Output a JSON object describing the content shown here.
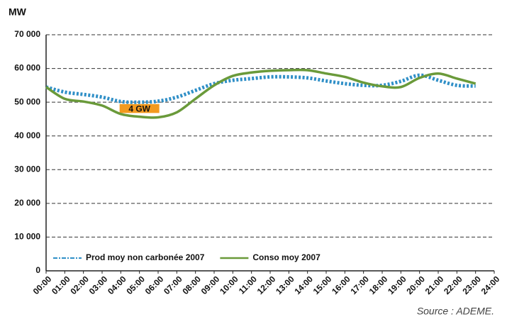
{
  "chart_data": {
    "type": "line",
    "y_label": "MW",
    "source": "Source : ADEME.",
    "annotation": "4 GW",
    "categories": [
      "00:00",
      "01:00",
      "02:00",
      "03:00",
      "04:00",
      "05:00",
      "06:00",
      "07:00",
      "08:00",
      "09:00",
      "10:00",
      "11:00",
      "12:00",
      "13:00",
      "14:00",
      "15:00",
      "16:00",
      "17:00",
      "18:00",
      "19:00",
      "20:00",
      "21:00",
      "22:00",
      "23:00",
      "24:00"
    ],
    "series": [
      {
        "name": "Prod moy non carbonée 2007",
        "color": "#2f8fc7",
        "style": "dotted",
        "values": [
          54500,
          53000,
          52300,
          51500,
          50200,
          50000,
          50300,
          51500,
          53500,
          55500,
          56500,
          57000,
          57500,
          57500,
          57200,
          56300,
          55500,
          55000,
          55000,
          56200,
          58000,
          56500,
          55000,
          54800,
          null
        ]
      },
      {
        "name": "Conso moy 2007",
        "color": "#6a9a3a",
        "style": "solid",
        "values": [
          54500,
          51000,
          50200,
          49000,
          46500,
          45700,
          45500,
          47000,
          51000,
          55000,
          57800,
          58800,
          59300,
          59500,
          59500,
          58500,
          57500,
          55800,
          54700,
          54500,
          57200,
          58500,
          57000,
          55500,
          null
        ]
      }
    ],
    "ylim": [
      0,
      70000
    ],
    "yticks": [
      0,
      {
        "value": 10000,
        "label": "10 000"
      },
      {
        "value": 20000,
        "label": "20 000"
      },
      {
        "value": 30000,
        "label": "30 000"
      },
      {
        "value": 40000,
        "label": "40 000"
      },
      {
        "value": 50000,
        "label": "50 000"
      },
      {
        "value": 60000,
        "label": "60 000"
      },
      {
        "value": 70000,
        "label": "70 000"
      }
    ],
    "grid": true,
    "legend": "bottom"
  }
}
